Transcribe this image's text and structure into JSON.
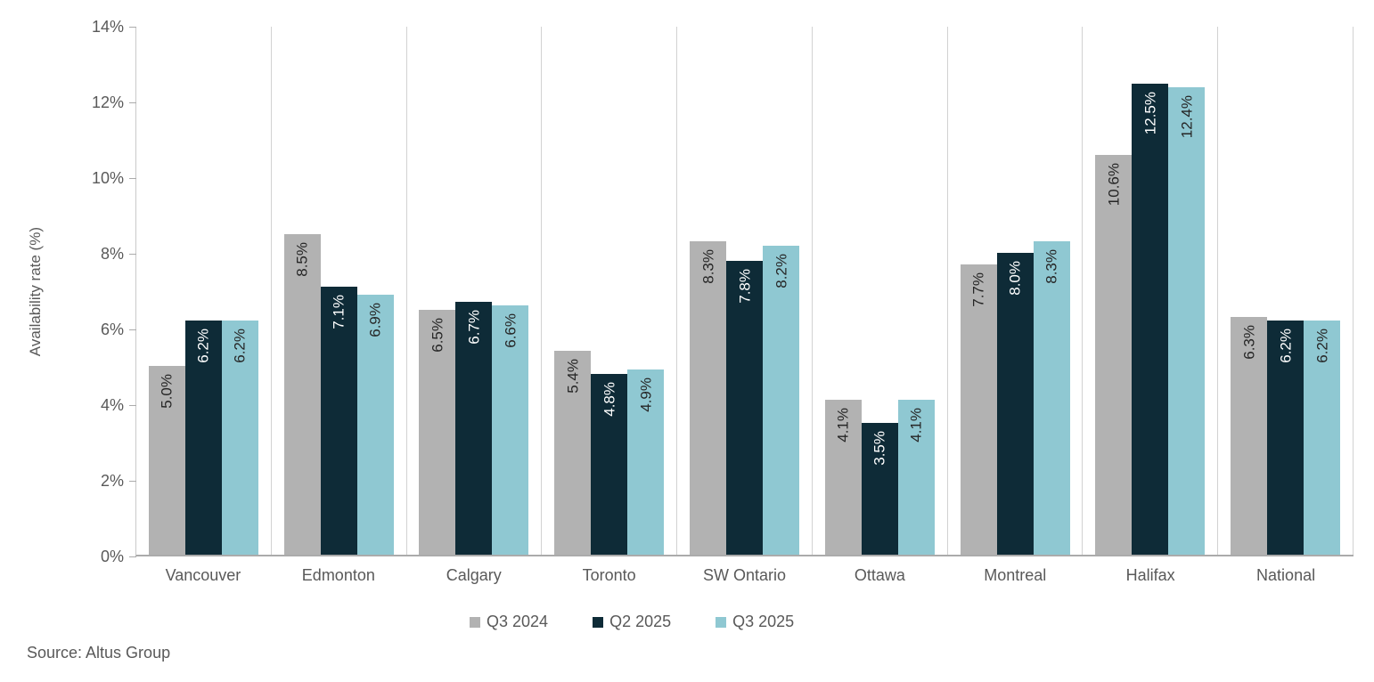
{
  "chart_data": {
    "type": "bar",
    "title": "",
    "ylabel": "Availability rate (%)",
    "xlabel": "",
    "categories": [
      "Vancouver",
      "Edmonton",
      "Calgary",
      "Toronto",
      "SW Ontario",
      "Ottawa",
      "Montreal",
      "Halifax",
      "National"
    ],
    "series": [
      {
        "name": "Q3 2024",
        "color": "#b2b2b2",
        "label_color": "#262626",
        "values": [
          5.0,
          8.5,
          6.5,
          5.4,
          8.3,
          4.1,
          7.7,
          10.6,
          6.3
        ],
        "labels": [
          "5.0%",
          "8.5%",
          "6.5%",
          "5.4%",
          "8.3%",
          "4.1%",
          "7.7%",
          "10.6%",
          "6.3%"
        ]
      },
      {
        "name": "Q2 2025",
        "color": "#0e2b37",
        "label_color": "#ffffff",
        "values": [
          6.2,
          7.1,
          6.7,
          4.8,
          7.8,
          3.5,
          8.0,
          12.5,
          6.2
        ],
        "labels": [
          "6.2%",
          "7.1%",
          "6.7%",
          "4.8%",
          "7.8%",
          "3.5%",
          "8.0%",
          "12.5%",
          "6.2%"
        ]
      },
      {
        "name": "Q3 2025",
        "color": "#8fc8d2",
        "label_color": "#262626",
        "values": [
          6.2,
          6.9,
          6.6,
          4.9,
          8.2,
          4.1,
          8.3,
          12.4,
          6.2
        ],
        "labels": [
          "6.2%",
          "6.9%",
          "6.6%",
          "4.9%",
          "8.2%",
          "4.1%",
          "8.3%",
          "12.4%",
          "6.2%"
        ]
      }
    ],
    "ylim": [
      0,
      14
    ],
    "yticks": [
      {
        "value": 0,
        "label": "0%"
      },
      {
        "value": 2,
        "label": "2%"
      },
      {
        "value": 4,
        "label": "4%"
      },
      {
        "value": 6,
        "label": "6%"
      },
      {
        "value": 8,
        "label": "8%"
      },
      {
        "value": 10,
        "label": "10%"
      },
      {
        "value": 12,
        "label": "12%"
      },
      {
        "value": 14,
        "label": "14%"
      }
    ],
    "grid": "vertical-category-separators",
    "legend_position": "bottom-center",
    "bar_label_rotation": "90deg-bottom-to-top-inside-end"
  },
  "source": "Source: Altus Group"
}
